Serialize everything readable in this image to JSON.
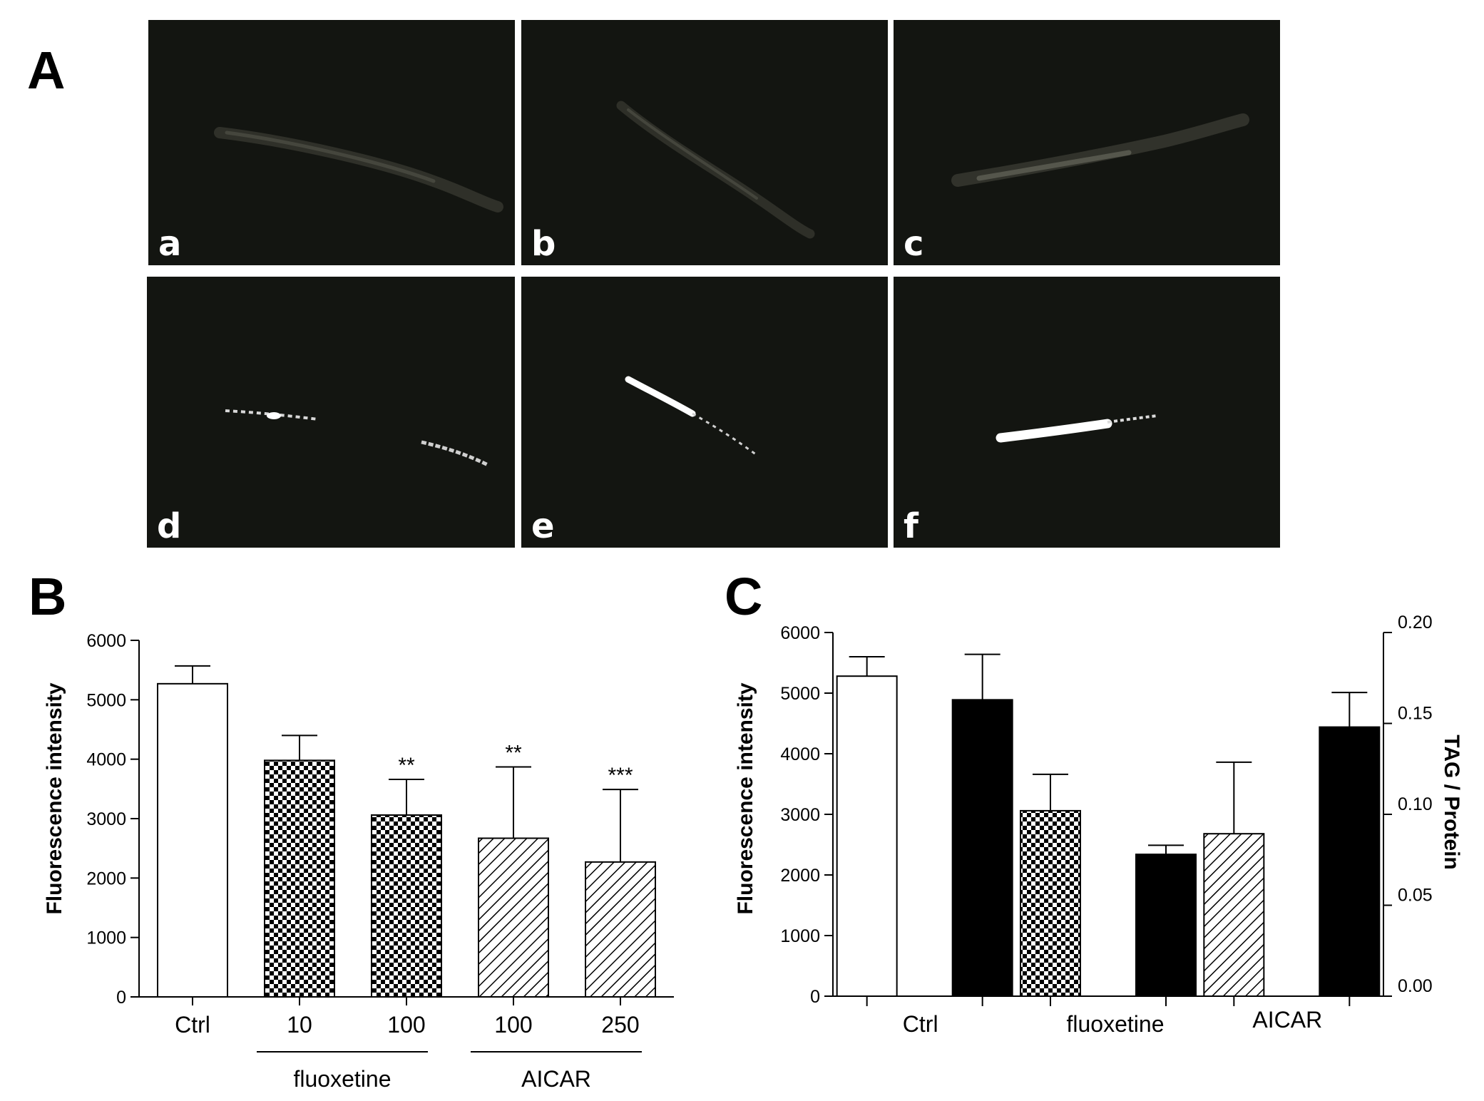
{
  "figure": {
    "panel_labels": {
      "a": "A",
      "b": "B",
      "c": "C"
    },
    "micrographs": [
      {
        "label": "a",
        "signal": "dim"
      },
      {
        "label": "b",
        "signal": "dim"
      },
      {
        "label": "c",
        "signal": "dim"
      },
      {
        "label": "d",
        "signal": "bright"
      },
      {
        "label": "e",
        "signal": "bright"
      },
      {
        "label": "f",
        "signal": "bright"
      }
    ]
  },
  "chart_data": [
    {
      "type": "bar",
      "panel": "B",
      "categories": [
        "Ctrl",
        "10",
        "100",
        "100",
        "250"
      ],
      "values": [
        5270,
        3980,
        3060,
        2670,
        2270
      ],
      "errors": [
        300,
        420,
        600,
        1200,
        1220
      ],
      "significance": [
        "",
        "",
        "**",
        "**",
        "***"
      ],
      "patterns": [
        "white",
        "checker",
        "checker",
        "hatch",
        "hatch"
      ],
      "groups": [
        {
          "label": "fluoxetine",
          "categories": [
            1,
            2
          ]
        },
        {
          "label": "AICAR",
          "categories": [
            3,
            4
          ]
        }
      ],
      "ylabel": "Fluorescence intensity",
      "ylim": [
        0,
        6000
      ],
      "yticks": [
        0,
        1000,
        2000,
        3000,
        4000,
        5000,
        6000
      ],
      "grid": false
    },
    {
      "type": "bar",
      "panel": "C",
      "categories": [
        "Ctrl",
        "fluoxetine",
        "AICAR"
      ],
      "series": [
        {
          "axis": "left",
          "values": [
            5280,
            3060,
            2680
          ],
          "errors": [
            320,
            600,
            1180
          ],
          "patterns": [
            "white",
            "checker",
            "hatch"
          ]
        },
        {
          "axis": "right",
          "values": [
            0.163,
            0.078,
            0.148
          ],
          "errors": [
            0.025,
            0.005,
            0.019
          ],
          "patterns": [
            "black",
            "black",
            "black"
          ]
        }
      ],
      "ylabel": "Fluorescence intensity",
      "ylim": [
        0,
        6000
      ],
      "yticks": [
        0,
        1000,
        2000,
        3000,
        4000,
        5000,
        6000
      ],
      "y2label": "TAG / Protein",
      "y2lim": [
        0,
        0.2
      ],
      "y2ticks": [
        "0.00",
        "0.05",
        "0.10",
        "0.15",
        "0.20"
      ],
      "grid": false
    }
  ]
}
